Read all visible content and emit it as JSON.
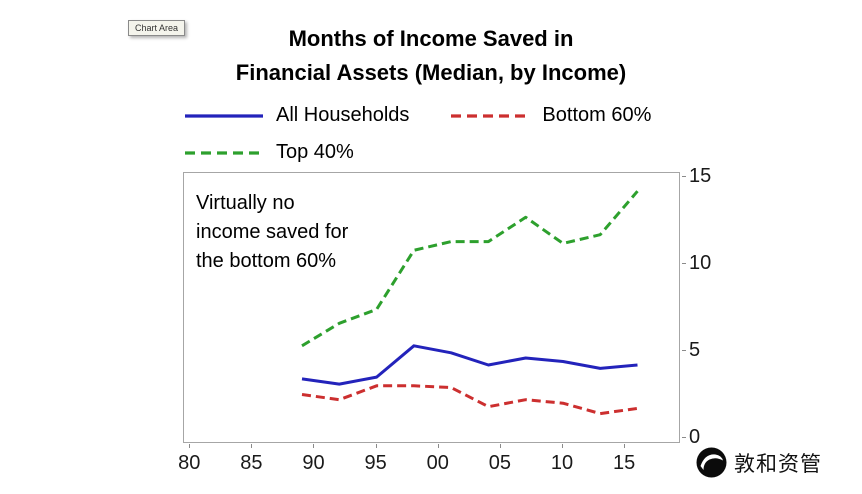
{
  "tooltip_label": "Chart Area",
  "title": {
    "line1": "Months of Income Saved in",
    "line2": "Financial Assets (Median, by Income)"
  },
  "annotation": {
    "line1": "Virtually no",
    "line2": "income saved for",
    "line3": "the bottom 60%"
  },
  "logo_text": "敦和资管",
  "chart_data": {
    "type": "line",
    "title": "Months of Income Saved in Financial Assets (Median, by Income)",
    "x": [
      1989,
      1992,
      1995,
      1998,
      2001,
      2004,
      2007,
      2010,
      2013,
      2016
    ],
    "series": [
      {
        "name": "All Households",
        "color": "#2323bb",
        "dash": false,
        "values": [
          3.4,
          3.1,
          3.5,
          5.3,
          4.9,
          4.2,
          4.6,
          4.4,
          4.0,
          4.2
        ]
      },
      {
        "name": "Bottom 60%",
        "color": "#cc2f2f",
        "dash": true,
        "values": [
          2.5,
          2.2,
          3.0,
          3.0,
          2.9,
          1.8,
          2.2,
          2.0,
          1.4,
          1.7
        ]
      },
      {
        "name": "Top 40%",
        "color": "#2da02d",
        "dash": true,
        "values": [
          5.3,
          6.6,
          7.4,
          10.8,
          11.3,
          11.3,
          12.7,
          11.2,
          11.7,
          14.2
        ]
      }
    ],
    "xticks": [
      1980,
      1985,
      1990,
      1995,
      2000,
      2005,
      2010,
      2015
    ],
    "xtick_labels": [
      "80",
      "85",
      "90",
      "95",
      "00",
      "05",
      "10",
      "15"
    ],
    "yticks": [
      0,
      5,
      10,
      15
    ],
    "ytick_labels": [
      "0",
      "5",
      "10",
      "15"
    ],
    "xlim": [
      1979.5,
      2019.5
    ],
    "ylim": [
      -0.35,
      15.25
    ],
    "grid": false,
    "legend_position": "top",
    "y_axis_side": "right",
    "annotation": "Virtually no income saved for the bottom 60%"
  }
}
